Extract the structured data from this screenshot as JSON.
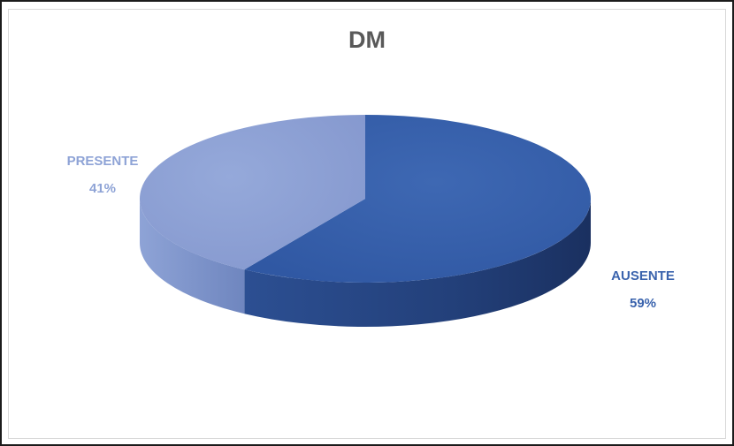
{
  "chart_data": {
    "type": "pie",
    "title": "DM",
    "slices": [
      {
        "label": "AUSENTE",
        "value": 59,
        "value_label": "59%",
        "color": "#3a63ad"
      },
      {
        "label": "PRESENTE",
        "value": 41,
        "value_label": "41%",
        "color": "#8ea3d6"
      }
    ],
    "style": "3d-exploded-none",
    "legend": "none"
  }
}
